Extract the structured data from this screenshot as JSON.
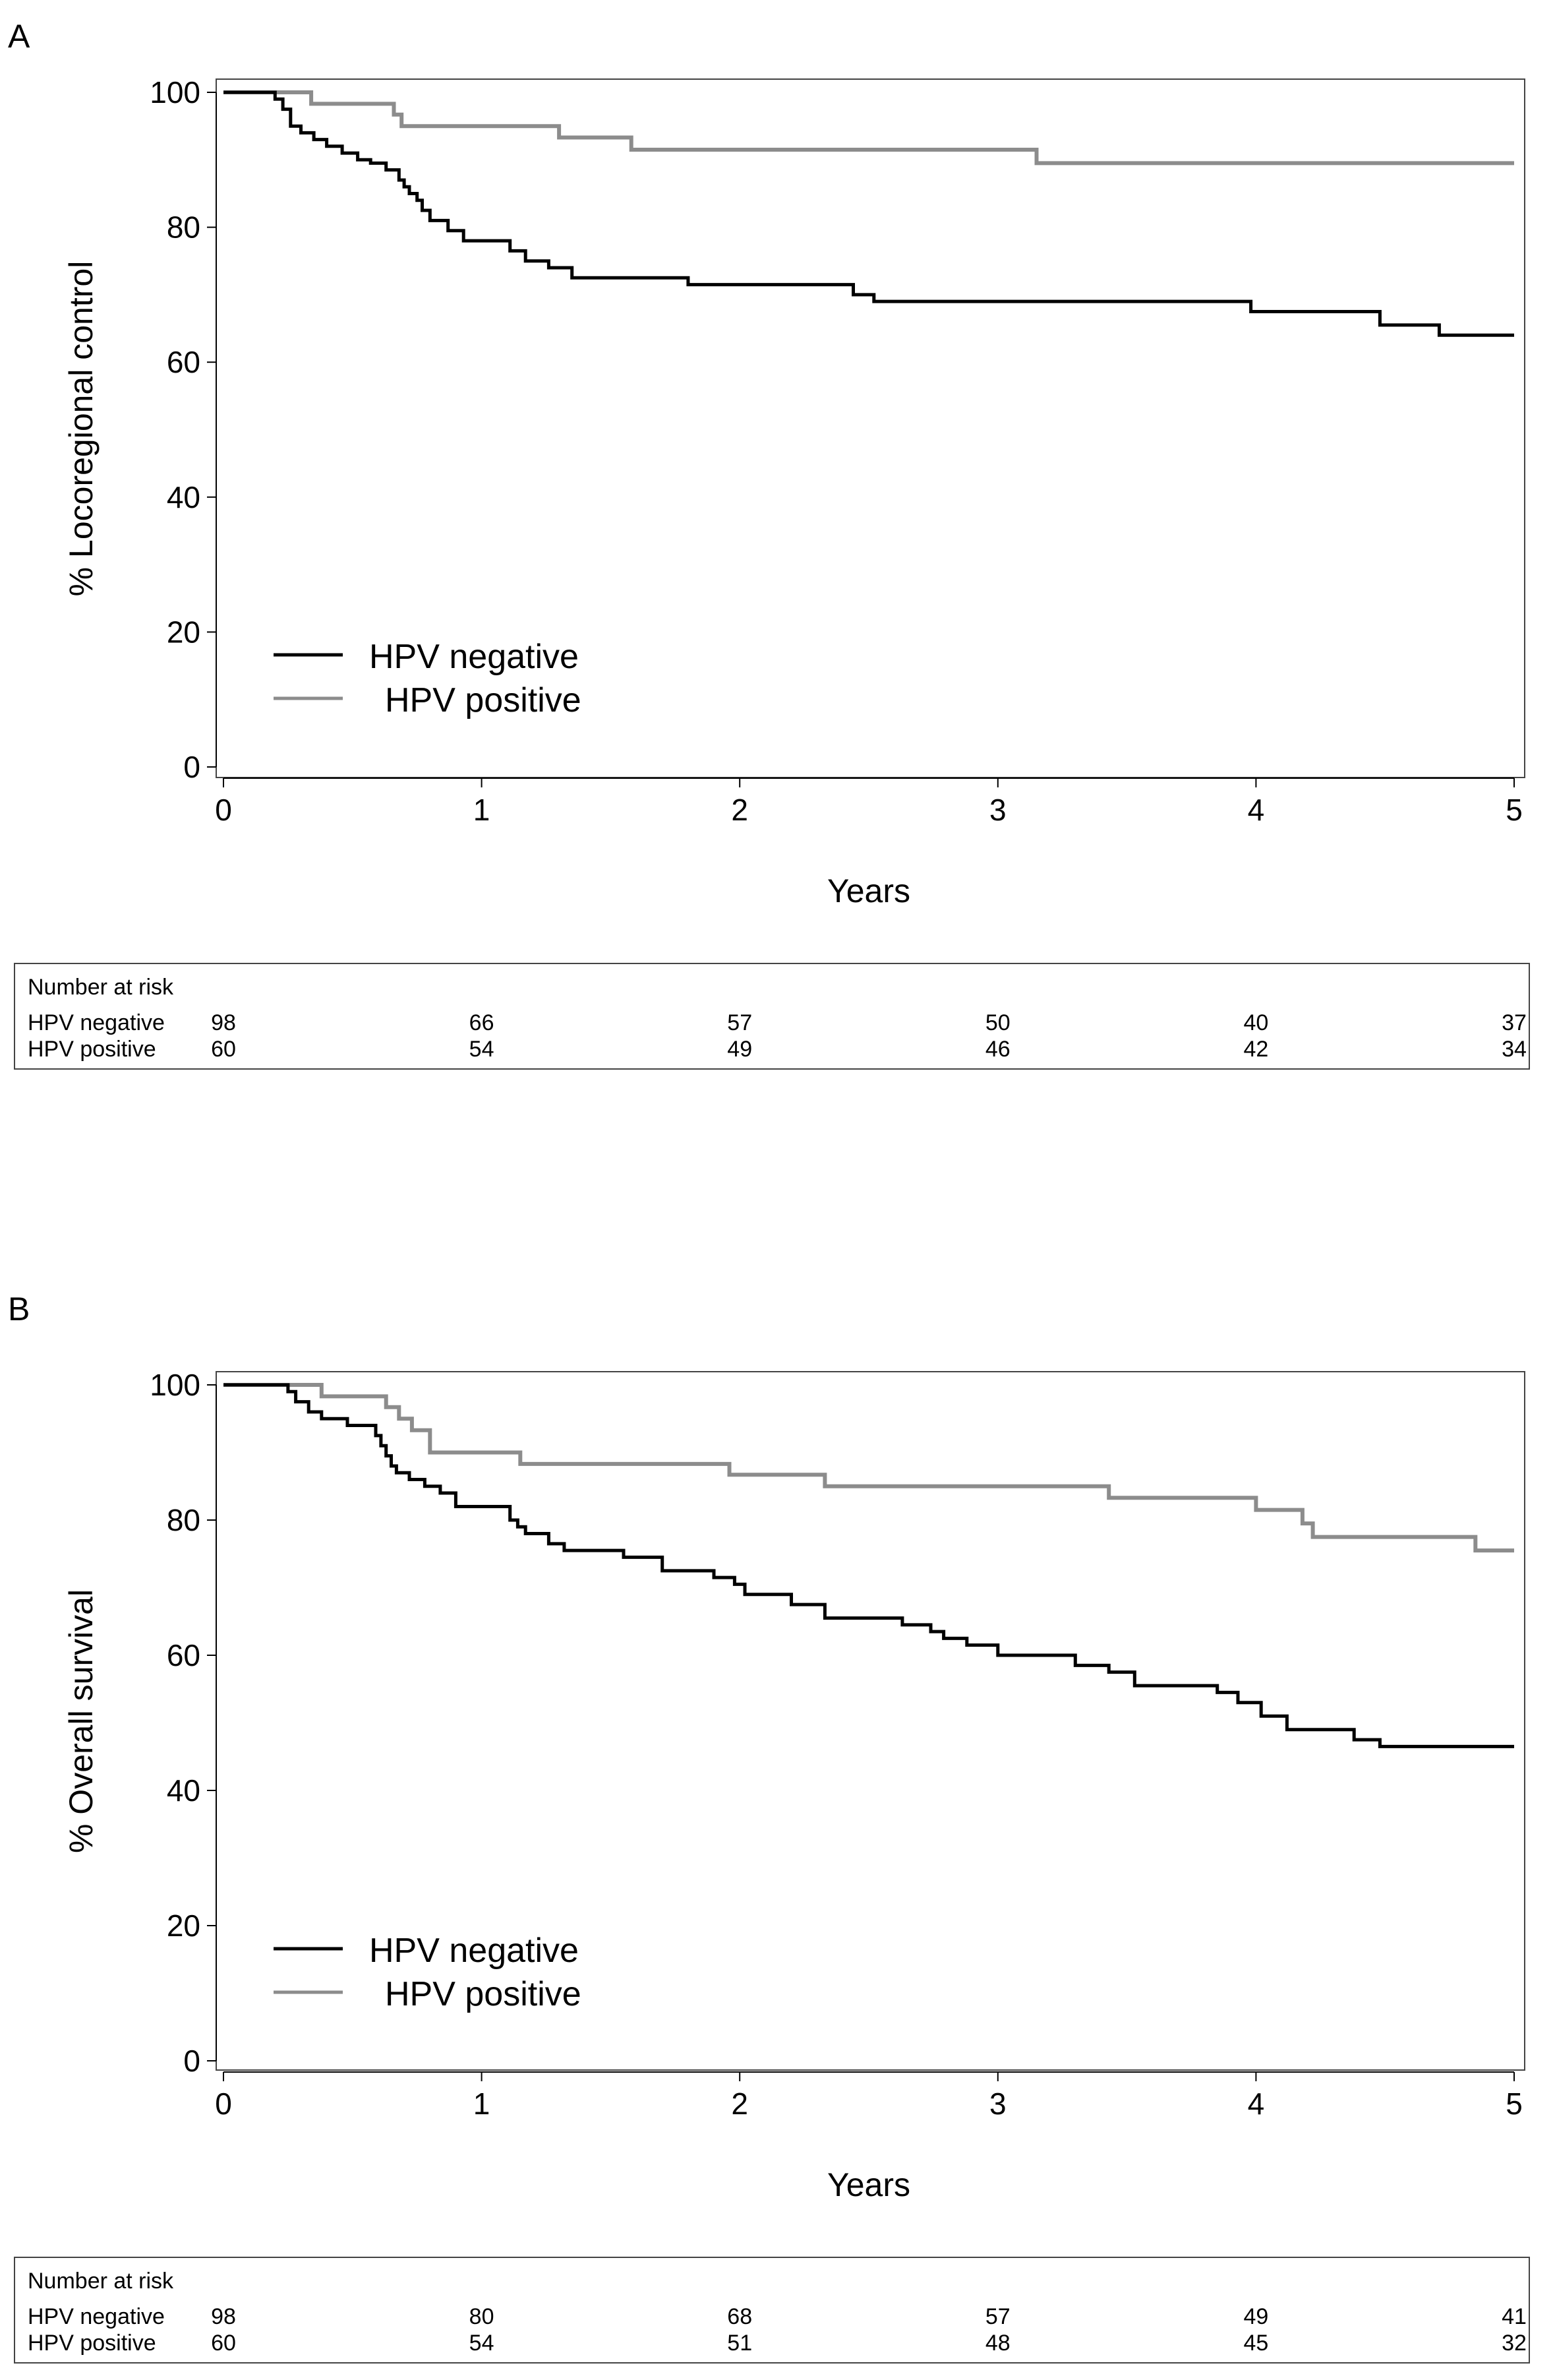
{
  "risk_table_heading": "Number at risk",
  "colors": {
    "hpv_negative": "#000000",
    "hpv_positive": "#8c8c8c"
  },
  "chart_data": [
    {
      "panel": "A",
      "type": "line",
      "step": true,
      "title": "",
      "xlabel": "Years",
      "ylabel": "% Locoregional control",
      "xlim": [
        0,
        5
      ],
      "ylim": [
        0,
        100
      ],
      "xticks": [
        0,
        1,
        2,
        3,
        4,
        5
      ],
      "yticks": [
        0,
        20,
        40,
        60,
        80,
        100
      ],
      "legend_position": "lower-left",
      "series": [
        {
          "name": "HPV negative",
          "color": "#000000",
          "x": [
            0,
            0.2,
            0.23,
            0.26,
            0.3,
            0.35,
            0.4,
            0.46,
            0.52,
            0.57,
            0.63,
            0.68,
            0.7,
            0.72,
            0.75,
            0.77,
            0.8,
            0.87,
            0.93,
            1.11,
            1.17,
            1.26,
            1.35,
            1.8,
            2.44,
            2.52,
            3.98,
            4.48,
            4.71,
            5.0
          ],
          "y": [
            100,
            99,
            97.5,
            95,
            94,
            93,
            92,
            91,
            90,
            89.5,
            88.5,
            87,
            86,
            85,
            84,
            82.5,
            81,
            79.5,
            78,
            76.5,
            75,
            74,
            72.5,
            71.5,
            70,
            69,
            67.5,
            65.5,
            64,
            64
          ]
        },
        {
          "name": "HPV positive",
          "color": "#8c8c8c",
          "x": [
            0,
            0.34,
            0.66,
            0.69,
            1.3,
            1.58,
            3.15,
            5.0
          ],
          "y": [
            100,
            98.3,
            96.7,
            95,
            93.3,
            91.5,
            89.5,
            89.5
          ]
        }
      ],
      "number_at_risk": {
        "times": [
          0,
          1,
          2,
          3,
          4,
          5
        ],
        "rows": [
          {
            "group": "HPV negative",
            "counts": [
              98,
              66,
              57,
              50,
              40,
              37
            ]
          },
          {
            "group": "HPV positive",
            "counts": [
              60,
              54,
              49,
              46,
              42,
              34
            ]
          }
        ]
      }
    },
    {
      "panel": "B",
      "type": "line",
      "step": true,
      "title": "",
      "xlabel": "Years",
      "ylabel": "% Overall survival",
      "xlim": [
        0,
        5
      ],
      "ylim": [
        0,
        100
      ],
      "xticks": [
        0,
        1,
        2,
        3,
        4,
        5
      ],
      "yticks": [
        0,
        20,
        40,
        60,
        80,
        100
      ],
      "legend_position": "lower-left",
      "series": [
        {
          "name": "HPV negative",
          "color": "#000000",
          "x": [
            0,
            0.25,
            0.28,
            0.33,
            0.38,
            0.48,
            0.59,
            0.61,
            0.63,
            0.65,
            0.67,
            0.72,
            0.78,
            0.84,
            0.9,
            1.11,
            1.14,
            1.17,
            1.26,
            1.32,
            1.55,
            1.7,
            1.9,
            1.98,
            2.02,
            2.2,
            2.33,
            2.63,
            2.74,
            2.79,
            2.88,
            3.0,
            3.3,
            3.43,
            3.53,
            3.85,
            3.93,
            4.02,
            4.12,
            4.38,
            4.48,
            5.0
          ],
          "y": [
            100,
            99,
            97.5,
            96,
            95,
            94,
            92.5,
            91,
            89.5,
            88,
            87,
            86,
            85,
            84,
            82,
            80,
            79,
            78,
            76.5,
            75.5,
            74.5,
            72.5,
            71.5,
            70.5,
            69,
            67.5,
            65.5,
            64.5,
            63.5,
            62.5,
            61.5,
            60,
            58.5,
            57.5,
            55.5,
            54.5,
            53,
            51,
            49,
            47.5,
            46.5,
            46.5
          ]
        },
        {
          "name": "HPV positive",
          "color": "#8c8c8c",
          "x": [
            0,
            0.38,
            0.63,
            0.68,
            0.73,
            0.8,
            1.15,
            1.96,
            2.33,
            3.43,
            4.0,
            4.18,
            4.22,
            4.85,
            5.0
          ],
          "y": [
            100,
            98.3,
            96.7,
            95,
            93.3,
            90,
            88.3,
            86.7,
            85,
            83.3,
            81.5,
            79.5,
            77.5,
            75.5,
            75.5
          ]
        }
      ],
      "number_at_risk": {
        "times": [
          0,
          1,
          2,
          3,
          4,
          5
        ],
        "rows": [
          {
            "group": "HPV negative",
            "counts": [
              98,
              80,
              68,
              57,
              49,
              41
            ]
          },
          {
            "group": "HPV positive",
            "counts": [
              60,
              54,
              51,
              48,
              45,
              32
            ]
          }
        ]
      }
    }
  ]
}
